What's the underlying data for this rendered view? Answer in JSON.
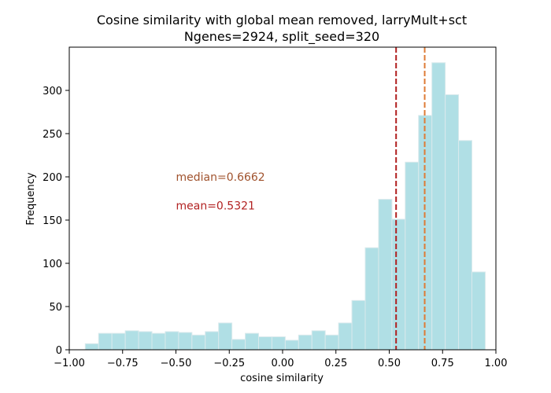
{
  "chart_data": {
    "type": "bar",
    "title_line1": "Cosine similarity with global mean removed, larryMult+sct",
    "title_line2": "Ngenes=2924, split_seed=320",
    "xlabel": "cosine similarity",
    "ylabel": "Frequency",
    "xlim": [
      -1.0,
      1.0
    ],
    "ylim": [
      0,
      350
    ],
    "xticks": [
      -1.0,
      -0.75,
      -0.5,
      -0.25,
      0.0,
      0.25,
      0.5,
      0.75,
      1.0
    ],
    "xtick_labels": [
      "−1.00",
      "−0.75",
      "−0.50",
      "−0.25",
      "0.00",
      "0.25",
      "0.50",
      "0.75",
      "1.00"
    ],
    "yticks": [
      0,
      50,
      100,
      150,
      200,
      250,
      300
    ],
    "ytick_labels": [
      "0",
      "50",
      "100",
      "150",
      "200",
      "250",
      "300"
    ],
    "bin_edges": [
      -0.925,
      -0.8625,
      -0.8,
      -0.7375,
      -0.675,
      -0.6125,
      -0.55,
      -0.4875,
      -0.425,
      -0.3625,
      -0.3,
      -0.2375,
      -0.175,
      -0.1125,
      -0.05,
      0.0125,
      0.075,
      0.1375,
      0.2,
      0.2625,
      0.325,
      0.3875,
      0.45,
      0.5125,
      0.575,
      0.6375,
      0.7,
      0.7625,
      0.825,
      0.8875,
      0.95
    ],
    "counts": [
      7,
      19,
      19,
      22,
      21,
      19,
      21,
      20,
      17,
      21,
      31,
      12,
      19,
      15,
      15,
      11,
      17,
      22,
      17,
      31,
      57,
      118,
      174,
      151,
      217,
      271,
      332,
      295,
      242,
      90
    ],
    "bar_color": "#b0dfe5",
    "bar_edge_color": "#d9e9ec",
    "median_value": 0.6662,
    "mean_value": 0.5321,
    "median_color": "#de7b36",
    "mean_color": "#b01f1f",
    "median_label": "median=0.6662",
    "mean_label": "mean=0.5321",
    "median_text_color": "#a0522d",
    "mean_text_color": "#b22222",
    "annotation_x": -0.5,
    "median_label_y": 200,
    "mean_label_y": 167
  }
}
